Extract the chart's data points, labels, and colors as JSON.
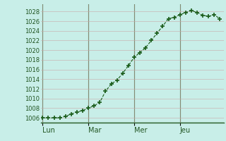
{
  "bg_color": "#c8eee8",
  "grid_color": "#c8a8a8",
  "day_line_color": "#336633",
  "line_color": "#1a5c1a",
  "marker_color": "#1a5c1a",
  "bottom_bar_color": "#336633",
  "ylim": [
    1005.0,
    1029.5
  ],
  "yticks": [
    1006,
    1008,
    1010,
    1012,
    1014,
    1016,
    1018,
    1020,
    1022,
    1024,
    1026,
    1028
  ],
  "day_labels": [
    "Lun",
    "Mar",
    "Mer",
    "Jeu"
  ],
  "day_positions": [
    0,
    24,
    48,
    72
  ],
  "x_values": [
    0,
    3,
    6,
    9,
    12,
    15,
    18,
    21,
    24,
    27,
    30,
    33,
    36,
    39,
    42,
    45,
    48,
    51,
    54,
    57,
    60,
    63,
    66,
    69,
    72,
    75,
    78,
    81,
    84,
    87,
    90,
    93
  ],
  "y_values": [
    1006.0,
    1006.0,
    1006.0,
    1006.0,
    1006.3,
    1006.8,
    1007.2,
    1007.5,
    1008.0,
    1008.5,
    1009.2,
    1011.5,
    1013.0,
    1013.8,
    1015.2,
    1016.8,
    1018.5,
    1019.5,
    1020.5,
    1022.0,
    1023.5,
    1025.0,
    1026.5,
    1026.8,
    1027.3,
    1027.8,
    1028.2,
    1027.8,
    1027.2,
    1027.0,
    1027.3,
    1026.5
  ],
  "xlim": [
    -1,
    95
  ],
  "ylabel_fontsize": 6,
  "xlabel_fontsize": 7
}
